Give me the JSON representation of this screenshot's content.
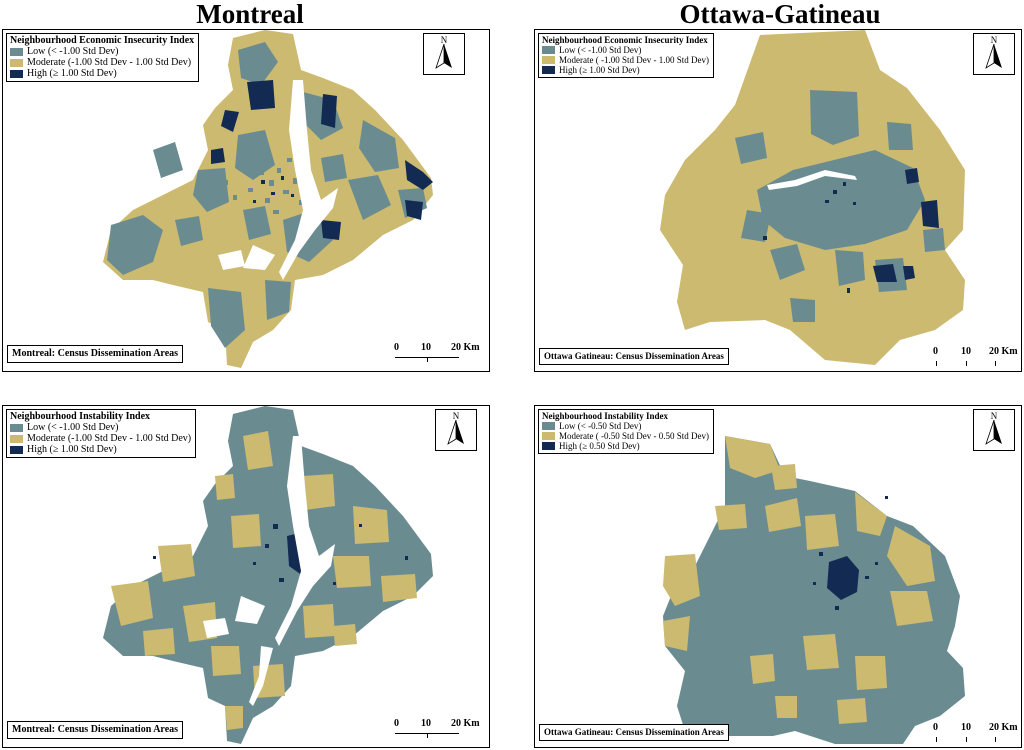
{
  "titles": {
    "left": "Montreal",
    "right": "Ottawa-Gatineau"
  },
  "colors": {
    "low": "#6a8c91",
    "moderate": "#cbba6f",
    "high": "#132b52",
    "water": "#ffffff"
  },
  "panels": {
    "mtl_econ": {
      "legend_title": "Neighbourhood Economic Insecurity Index",
      "legend_items": [
        "Low (< -1.00 Std Dev)",
        "Moderate (-1.00 Std Dev - 1.00 Std Dev)",
        "High (≥ 1.00 Std Dev)"
      ],
      "caption": "Montreal: Census Dissemination Areas",
      "scale": [
        "0",
        "10",
        "20 Km"
      ],
      "north_label": "N"
    },
    "ott_econ": {
      "legend_title": "Neighbourhood Economic Insecurity Index",
      "legend_items": [
        "Low (< -1.00 Std Dev)",
        "Moderate ( -1.00 Std Dev - 1.00 Std Dev)",
        "High (≥ 1.00 Std Dev)"
      ],
      "caption": "Ottawa Gatineau: Census Dissemination Areas",
      "scale": [
        "0",
        "10",
        "20 Km"
      ],
      "north_label": "N"
    },
    "mtl_inst": {
      "legend_title": "Neighbourhood Instability Index",
      "legend_items": [
        "Low (< -1.00 Std Dev)",
        "Moderate (-1.00 Std Dev - 1.00 Std Dev)",
        "High (≥ 1.00 Std Dev)"
      ],
      "caption": "Montreal: Census Dissemination Areas",
      "scale": [
        "0",
        "10",
        "20 Km"
      ],
      "north_label": "N"
    },
    "ott_inst": {
      "legend_title": "Neighbourhood Instability Index",
      "legend_items": [
        "Low (< -0.50 Std Dev)",
        "Moderate ( -0.50 Std Dev - 0.50 Std Dev)",
        "High (≥ 0.50 Std Dev)"
      ],
      "caption": "Ottawa Gatineau: Census Dissemination Areas",
      "scale": [
        "0",
        "10",
        "20 Km"
      ],
      "north_label": "N"
    }
  }
}
